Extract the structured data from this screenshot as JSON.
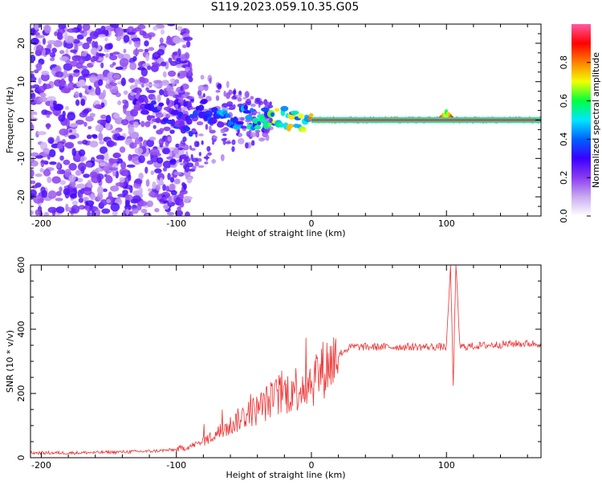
{
  "title": "S119.2023.059.10.35.G05",
  "colors": {
    "snr_line": "#ee3333",
    "colormap": [
      "#ffffff",
      "#c9aaf0",
      "#8a3cf0",
      "#3a00ff",
      "#0060ff",
      "#00e6ff",
      "#00ff40",
      "#f0ff00",
      "#ff8000",
      "#ff0000",
      "#ff5aa0"
    ]
  },
  "chart_data": [
    {
      "type": "heatmap",
      "title": "",
      "xlabel": "Height of straight line (km)",
      "ylabel": "Frequency (Hz)",
      "xlim": [
        -208,
        170
      ],
      "ylim": [
        -25,
        25
      ],
      "xticks": [
        -200,
        -100,
        0,
        100
      ],
      "xtick_labels": [
        "-200",
        "-100",
        "0",
        "100"
      ],
      "yticks": [
        -20,
        -10,
        0,
        10,
        20
      ],
      "ytick_labels": [
        "-20",
        "-10",
        "0",
        "10",
        "20"
      ],
      "colorbar": {
        "label": "Normalized spectral amplitude",
        "range": [
          0,
          1
        ],
        "ticks": [
          0.0,
          0.2,
          0.4,
          0.6,
          0.8
        ],
        "tick_labels": [
          "0.0",
          "0.2",
          "0.4",
          "0.6",
          "0.8"
        ]
      },
      "ridge": {
        "x": [
          -130,
          -120,
          -110,
          -100,
          -90,
          -80,
          -70,
          -60,
          -50,
          -40,
          -30,
          -20,
          -10,
          0,
          10,
          20,
          50,
          80,
          95,
          100,
          105,
          130,
          170
        ],
        "frequency": [
          3,
          3,
          2,
          0,
          -2,
          3,
          0,
          -1,
          1,
          0,
          1,
          1,
          -1,
          0,
          0,
          0,
          0,
          0,
          0,
          2,
          0,
          0,
          0
        ],
        "amplitude": [
          0.25,
          0.3,
          0.3,
          0.3,
          0.3,
          0.35,
          0.4,
          0.4,
          0.45,
          0.5,
          0.55,
          0.7,
          0.55,
          0.75,
          0.85,
          0.95,
          0.95,
          0.95,
          0.95,
          0.6,
          0.95,
          0.95,
          0.95
        ]
      },
      "noise_region_x": [
        -208,
        -100
      ]
    },
    {
      "type": "line",
      "title": "",
      "xlabel": "Height of straight line (km)",
      "ylabel": "SNR (10 * v/v)",
      "xlim": [
        -208,
        170
      ],
      "ylim": [
        0,
        600
      ],
      "xticks": [
        -200,
        -100,
        0,
        100
      ],
      "xtick_labels": [
        "-200",
        "-100",
        "0",
        "100"
      ],
      "yticks": [
        0,
        200,
        400,
        600
      ],
      "ytick_labels": [
        "0",
        "200",
        "400",
        "600"
      ],
      "series": [
        {
          "x": [
            -208,
            -180,
            -160,
            -140,
            -120,
            -100,
            -90,
            -80,
            -70,
            -60,
            -50,
            -40,
            -30,
            -20,
            -10,
            0,
            5,
            10,
            15,
            20,
            25,
            30,
            40,
            60,
            80,
            100,
            103,
            105,
            107,
            110,
            130,
            150,
            170
          ],
          "y": [
            15,
            15,
            16,
            18,
            20,
            25,
            35,
            50,
            75,
            100,
            130,
            150,
            180,
            200,
            220,
            240,
            260,
            280,
            300,
            320,
            335,
            345,
            345,
            345,
            345,
            345,
            600,
            230,
            600,
            345,
            350,
            355,
            355
          ]
        }
      ]
    }
  ]
}
